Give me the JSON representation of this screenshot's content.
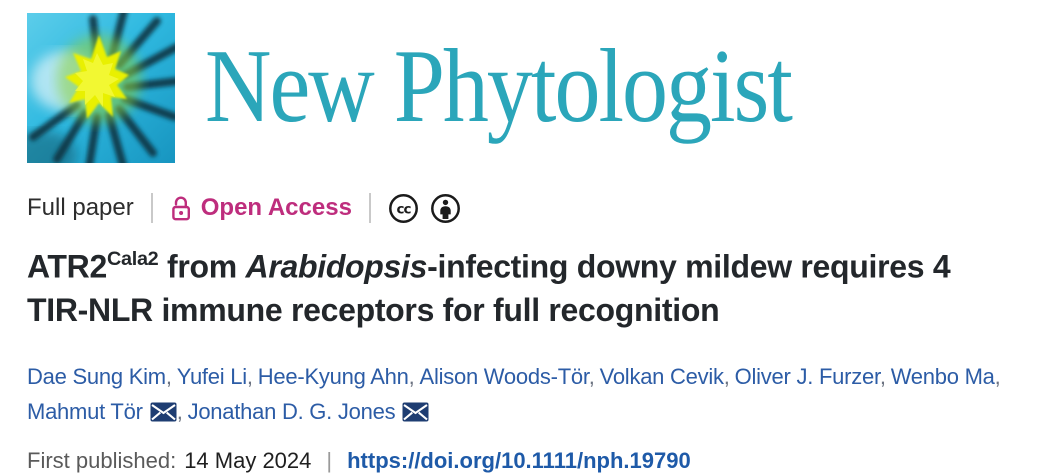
{
  "journal": {
    "name": "New Phytologist",
    "brand_teal": "#2BA6BA",
    "logo": {
      "background_cyan": "#2fb9e0",
      "ray_dark": "#0b3340",
      "starburst_yellow": "#e9f005",
      "halo_green": "#8fd23c"
    }
  },
  "meta": {
    "article_type": "Full paper",
    "access_label": "Open Access",
    "access_color": "#BE2D7D",
    "license_icons": [
      "cc",
      "by"
    ]
  },
  "title": {
    "line1": {
      "gene": "ATR2",
      "superscript": "Cala2",
      "connector": " from ",
      "species": "Arabidopsis",
      "rest": "-infecting downy mildew requires 4"
    },
    "line2": "TIR-NLR immune receptors for full recognition"
  },
  "authors": [
    {
      "name": "Dae Sung Kim"
    },
    {
      "name": "Yufei Li"
    },
    {
      "name": "Hee-Kyung Ahn"
    },
    {
      "name": "Alison Woods-Tör"
    },
    {
      "name": "Volkan Cevik"
    },
    {
      "name": "Oliver J. Furzer"
    },
    {
      "name": "Wenbo Ma",
      "break_after": true
    },
    {
      "name": "Mahmut Tör",
      "email": true
    },
    {
      "name": "Jonathan D. G. Jones",
      "email": true
    }
  ],
  "author_colors": {
    "name_blue": "#2C5CA6",
    "envelope_navy": "#1E3D72"
  },
  "footer": {
    "published_label": "First published:",
    "published_date": "14 May 2024",
    "separator": "|",
    "doi": "https://doi.org/10.1111/nph.19790",
    "doi_color": "#1E5AA8"
  }
}
